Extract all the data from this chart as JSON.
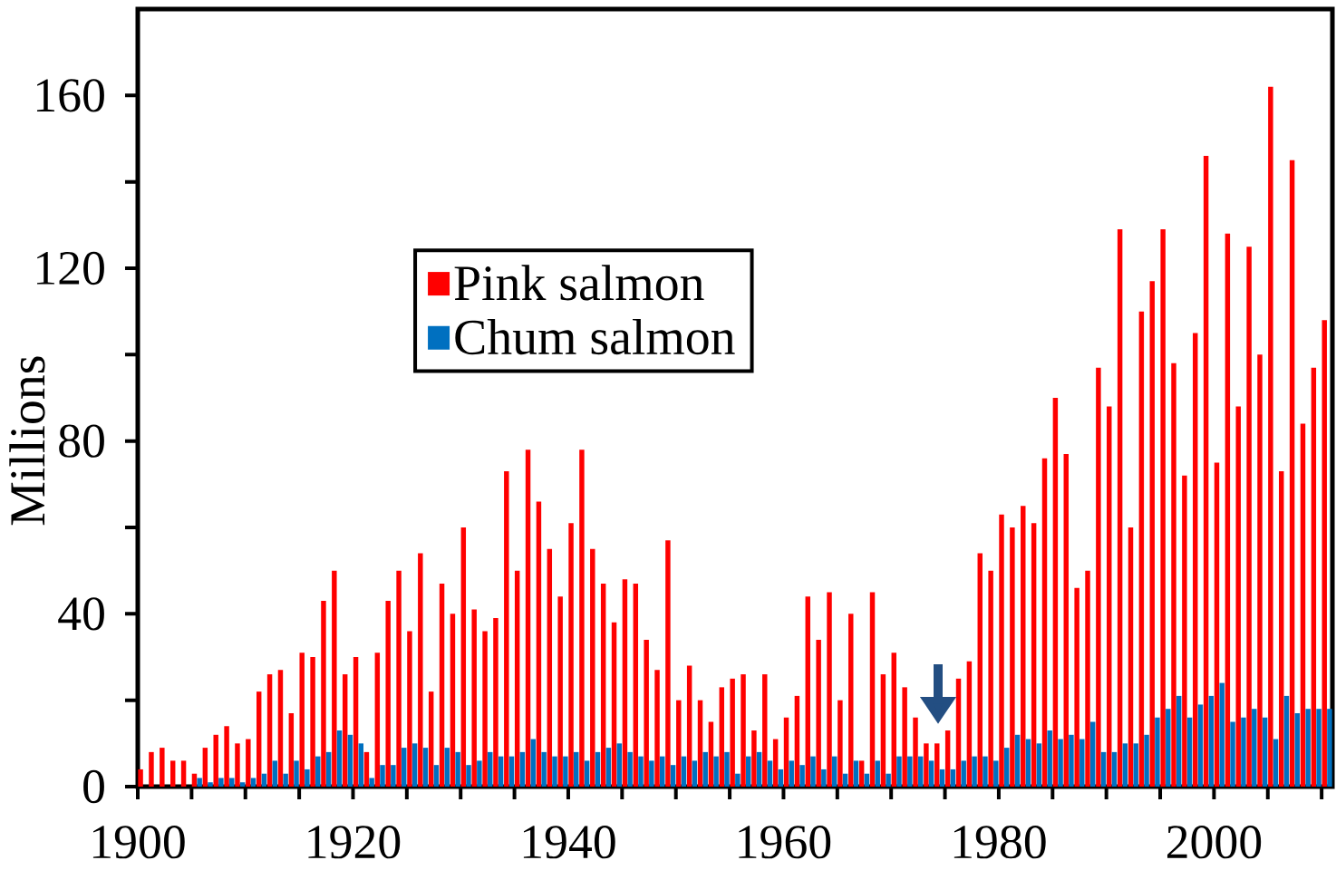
{
  "chart_data": {
    "type": "bar",
    "ylabel": "Millions",
    "x": [
      1900,
      1901,
      1902,
      1903,
      1904,
      1905,
      1906,
      1907,
      1908,
      1909,
      1910,
      1911,
      1912,
      1913,
      1914,
      1915,
      1916,
      1917,
      1918,
      1919,
      1920,
      1921,
      1922,
      1923,
      1924,
      1925,
      1926,
      1927,
      1928,
      1929,
      1930,
      1931,
      1932,
      1933,
      1934,
      1935,
      1936,
      1937,
      1938,
      1939,
      1940,
      1941,
      1942,
      1943,
      1944,
      1945,
      1946,
      1947,
      1948,
      1949,
      1950,
      1951,
      1952,
      1953,
      1954,
      1955,
      1956,
      1957,
      1958,
      1959,
      1960,
      1961,
      1962,
      1963,
      1964,
      1965,
      1966,
      1967,
      1968,
      1969,
      1970,
      1971,
      1972,
      1973,
      1974,
      1975,
      1976,
      1977,
      1978,
      1979,
      1980,
      1981,
      1982,
      1983,
      1984,
      1985,
      1986,
      1987,
      1988,
      1989,
      1990,
      1991,
      1992,
      1993,
      1994,
      1995,
      1996,
      1997,
      1998,
      1999,
      2000,
      2001,
      2002,
      2003,
      2004,
      2005,
      2006,
      2007,
      2008,
      2009,
      2010
    ],
    "series": [
      {
        "name": "Pink salmon",
        "color": "#ff0000",
        "values": [
          4,
          8,
          9,
          6,
          6,
          3,
          9,
          12,
          14,
          10,
          11,
          22,
          26,
          27,
          17,
          31,
          30,
          43,
          50,
          26,
          30,
          8,
          31,
          43,
          50,
          36,
          54,
          22,
          47,
          40,
          60,
          41,
          36,
          39,
          73,
          50,
          78,
          66,
          55,
          44,
          61,
          78,
          55,
          47,
          38,
          48,
          47,
          34,
          27,
          57,
          20,
          28,
          20,
          15,
          23,
          25,
          26,
          13,
          26,
          11,
          16,
          21,
          44,
          34,
          45,
          20,
          40,
          6,
          45,
          26,
          31,
          23,
          16,
          10,
          10,
          13,
          25,
          29,
          54,
          50,
          63,
          60,
          65,
          61,
          76,
          90,
          77,
          46,
          50,
          97,
          88,
          129,
          60,
          110,
          117,
          129,
          98,
          72,
          105,
          146,
          75,
          128,
          88,
          125,
          100,
          162,
          73,
          145,
          84,
          97,
          108
        ]
      },
      {
        "name": "Chum salmon",
        "color": "#0070c0",
        "values": [
          null,
          null,
          null,
          null,
          null,
          2,
          1,
          2,
          2,
          1,
          2,
          3,
          6,
          3,
          6,
          4,
          7,
          8,
          13,
          12,
          10,
          2,
          5,
          5,
          9,
          10,
          9,
          5,
          9,
          8,
          5,
          6,
          8,
          7,
          7,
          8,
          11,
          8,
          7,
          7,
          8,
          6,
          8,
          9,
          10,
          8,
          7,
          6,
          7,
          5,
          7,
          6,
          8,
          7,
          8,
          3,
          7,
          8,
          6,
          4,
          6,
          5,
          7,
          4,
          7,
          3,
          6,
          3,
          6,
          3,
          7,
          7,
          7,
          6,
          4,
          4,
          6,
          7,
          7,
          6,
          9,
          12,
          11,
          10,
          13,
          11,
          12,
          11,
          15,
          8,
          8,
          10,
          10,
          12,
          16,
          18,
          21,
          16,
          19,
          21,
          24,
          15,
          16,
          18,
          16,
          11,
          21,
          17,
          18,
          18,
          18
        ]
      }
    ],
    "xlim": [
      1899.5,
      2010.5
    ],
    "xticks": [
      {
        "value": 1899.5,
        "label": "1900"
      },
      {
        "value": 1904.5,
        "label": null
      },
      {
        "value": 1909.5,
        "label": null
      },
      {
        "value": 1914.5,
        "label": null
      },
      {
        "value": 1919.5,
        "label": "1920"
      },
      {
        "value": 1924.5,
        "label": null
      },
      {
        "value": 1929.5,
        "label": null
      },
      {
        "value": 1934.5,
        "label": null
      },
      {
        "value": 1939.5,
        "label": "1940"
      },
      {
        "value": 1944.5,
        "label": null
      },
      {
        "value": 1949.5,
        "label": null
      },
      {
        "value": 1954.5,
        "label": null
      },
      {
        "value": 1959.5,
        "label": "1960"
      },
      {
        "value": 1964.5,
        "label": null
      },
      {
        "value": 1969.5,
        "label": null
      },
      {
        "value": 1974.5,
        "label": null
      },
      {
        "value": 1979.5,
        "label": "1980"
      },
      {
        "value": 1984.5,
        "label": null
      },
      {
        "value": 1989.5,
        "label": null
      },
      {
        "value": 1994.5,
        "label": null
      },
      {
        "value": 1999.5,
        "label": "2000"
      },
      {
        "value": 2004.5,
        "label": null
      },
      {
        "value": 2009.5,
        "label": null
      }
    ],
    "ylim": [
      0,
      180
    ],
    "yticks": [
      0,
      {
        "value": 20,
        "label": null
      },
      40,
      {
        "value": 60,
        "label": null
      },
      80,
      {
        "value": 100,
        "label": null
      },
      120,
      {
        "value": 140,
        "label": null
      },
      160
    ],
    "legend": "top left"
  }
}
